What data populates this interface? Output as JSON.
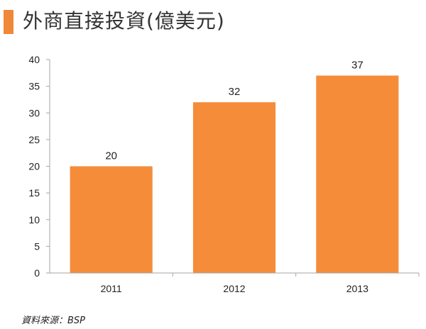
{
  "header": {
    "title": "外商直接投資(億美元)"
  },
  "colors": {
    "accent": "#f0883a",
    "bar": "#f58c3a",
    "axis": "#a6a6a6",
    "text": "#222222"
  },
  "chart_data": {
    "type": "bar",
    "title": "外商直接投資(億美元)",
    "categories": [
      "2011",
      "2012",
      "2013"
    ],
    "values": [
      20,
      32,
      37
    ],
    "data_labels": [
      "20",
      "32",
      "37"
    ],
    "ylim": [
      0,
      40
    ],
    "yticks": [
      0,
      5,
      10,
      15,
      20,
      25,
      30,
      35,
      40
    ],
    "xlabel": "",
    "ylabel": "",
    "grid": false,
    "legend": "none"
  },
  "footer": {
    "source": "資料來源：BSP"
  }
}
